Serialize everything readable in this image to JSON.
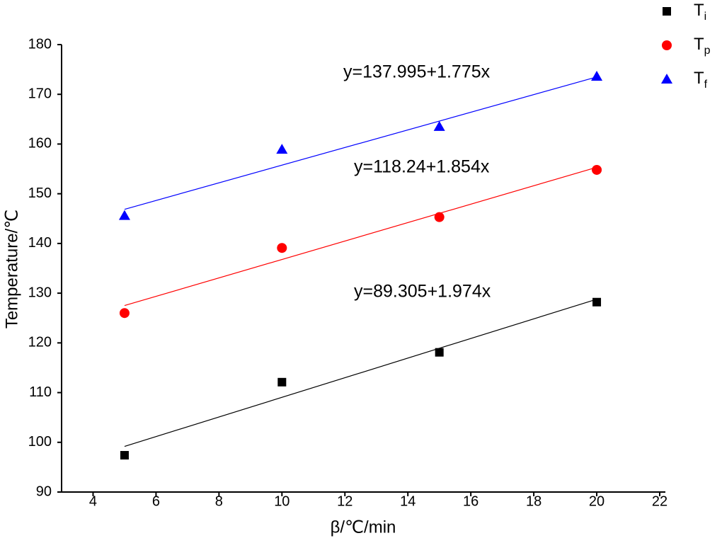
{
  "chart_data": {
    "type": "scatter",
    "x_label": "β/℃/min",
    "y_label": "Temperature/℃",
    "xlim": [
      3,
      22
    ],
    "ylim": [
      90,
      180
    ],
    "xticks": [
      4,
      6,
      8,
      10,
      12,
      14,
      16,
      18,
      20,
      22
    ],
    "yticks": [
      90,
      100,
      110,
      120,
      130,
      140,
      150,
      160,
      170,
      180
    ],
    "x": [
      5,
      10,
      15,
      20
    ],
    "series": [
      {
        "name": "T",
        "name_sub": "i",
        "color": "#000000",
        "marker": "square",
        "values": [
          97.4,
          112.1,
          118.1,
          128.2
        ],
        "fit": {
          "intercept": 89.305,
          "slope": 1.974,
          "label": "y=89.305+1.974x"
        }
      },
      {
        "name": "T",
        "name_sub": "p",
        "color": "#ff0000",
        "marker": "circle",
        "values": [
          126.0,
          139.1,
          145.3,
          154.8
        ],
        "fit": {
          "intercept": 118.24,
          "slope": 1.854,
          "label": "y=118.24+1.854x"
        }
      },
      {
        "name": "T",
        "name_sub": "f",
        "color": "#0000ff",
        "marker": "triangle",
        "values": [
          145.6,
          158.9,
          163.5,
          173.6
        ],
        "fit": {
          "intercept": 137.995,
          "slope": 1.775,
          "label": "y=137.995+1.775x"
        }
      }
    ]
  }
}
